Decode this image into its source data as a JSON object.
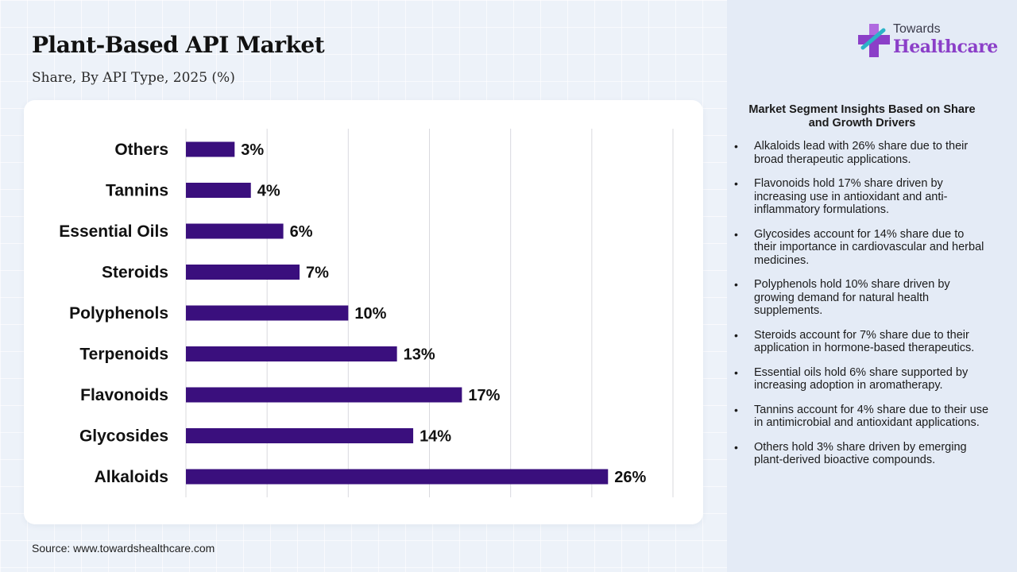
{
  "title": "Plant-Based API Market",
  "subtitle": "Share, By API Type, 2025 (%)",
  "source": "Source: www.towardshealthcare.com",
  "logo": {
    "top_text": "Towards",
    "main_text": "Healthcare",
    "icon": "medical-cross-icon"
  },
  "insights": {
    "title": "Market Segment Insights Based on Share and Growth Drivers",
    "items": [
      "Alkaloids lead with 26% share due to their broad therapeutic applications.",
      "Flavonoids hold 17% share driven by increasing use in antioxidant and anti-inflammatory formulations.",
      "Glycosides account for 14% share due to their importance in cardiovascular and herbal medicines.",
      "Polyphenols hold 10% share driven by growing demand for natural health supplements.",
      "Steroids account for 7% share due to their application in hormone-based therapeutics.",
      "Essential oils hold 6% share supported by increasing adoption in aromatherapy.",
      "Tannins account for 4% share due to their use in antimicrobial and antioxidant applications.",
      "Others hold 3% share driven by emerging plant-derived bioactive compounds."
    ]
  },
  "colors": {
    "bar": "#3a0f7d",
    "accent": "#8b3fc8"
  },
  "chart_data": {
    "type": "bar",
    "orientation": "horizontal",
    "categories": [
      "Others",
      "Tannins",
      "Essential Oils",
      "Steroids",
      "Polyphenols",
      "Terpenoids",
      "Flavonoids",
      "Glycosides",
      "Alkaloids"
    ],
    "values": [
      3,
      4,
      6,
      7,
      10,
      13,
      17,
      14,
      26
    ],
    "value_labels": [
      "3%",
      "4%",
      "6%",
      "7%",
      "10%",
      "13%",
      "17%",
      "14%",
      "26%"
    ],
    "xlim": [
      0,
      30
    ],
    "grid": true,
    "legend": "none"
  }
}
